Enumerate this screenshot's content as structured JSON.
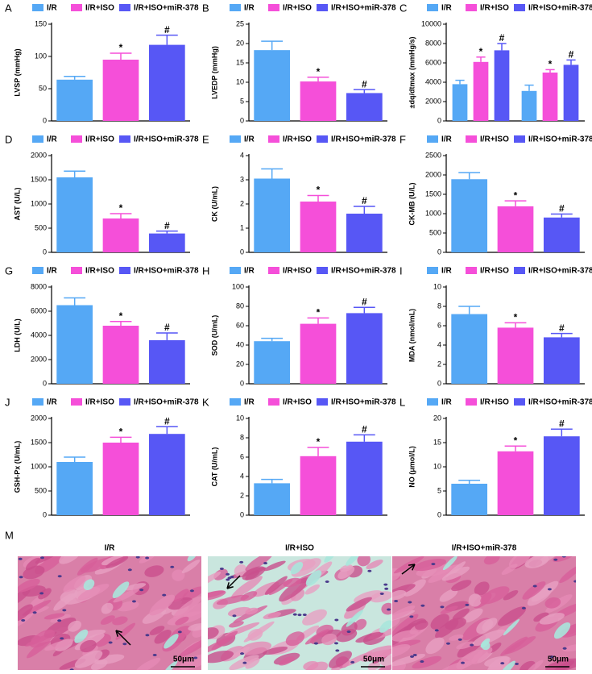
{
  "chart_data": [
    {
      "type": "bar",
      "panel": "A",
      "ylabel": "LVSP (mmHg)",
      "categories": [
        null
      ],
      "ylim": [
        0,
        150
      ],
      "yticks": [
        0,
        50,
        100,
        150
      ],
      "series": [
        {
          "name": "I/R",
          "color": "#55a8f5",
          "values": [
            64
          ],
          "errors": [
            5
          ]
        },
        {
          "name": "I/R+ISO",
          "color": "#f54fd9",
          "values": [
            95
          ],
          "errors": [
            10
          ],
          "annotation": "*"
        },
        {
          "name": "I/R+ISO+miR-378",
          "color": "#5757f5",
          "values": [
            118
          ],
          "errors": [
            15
          ],
          "annotation": "#"
        }
      ]
    },
    {
      "type": "bar",
      "panel": "B",
      "ylabel": "LVEDP (mmHg)",
      "categories": [
        null
      ],
      "ylim": [
        0,
        25
      ],
      "yticks": [
        0,
        5,
        10,
        15,
        20,
        25
      ],
      "series": [
        {
          "name": "I/R",
          "color": "#55a8f5",
          "values": [
            18.3
          ],
          "errors": [
            2.3
          ]
        },
        {
          "name": "I/R+ISO",
          "color": "#f54fd9",
          "values": [
            10.2
          ],
          "errors": [
            1.1
          ],
          "annotation": "*"
        },
        {
          "name": "I/R+ISO+miR-378",
          "color": "#5757f5",
          "values": [
            7.2
          ],
          "errors": [
            0.9
          ],
          "annotation": "#"
        }
      ]
    },
    {
      "type": "bar",
      "panel": "C",
      "ylabel": "±dq/dtmax (mmHg/s)",
      "categories": [
        null,
        null
      ],
      "ylim": [
        0,
        10000
      ],
      "yticks": [
        0,
        2000,
        4000,
        6000,
        8000,
        10000
      ],
      "series": [
        {
          "name": "I/R",
          "color": "#55a8f5",
          "values": [
            3800,
            3100
          ],
          "errors": [
            400,
            600
          ]
        },
        {
          "name": "I/R+ISO",
          "color": "#f54fd9",
          "values": [
            6100,
            5000
          ],
          "errors": [
            500,
            300
          ],
          "annotation": "*"
        },
        {
          "name": "I/R+ISO+miR-378",
          "color": "#5757f5",
          "values": [
            7300,
            5800
          ],
          "errors": [
            700,
            500
          ],
          "annotation": "#"
        }
      ]
    },
    {
      "type": "bar",
      "panel": "D",
      "ylabel": "AST (U/L)",
      "categories": [
        null
      ],
      "ylim": [
        0,
        2000
      ],
      "yticks": [
        0,
        500,
        1000,
        1500,
        2000
      ],
      "series": [
        {
          "name": "I/R",
          "color": "#55a8f5",
          "values": [
            1550
          ],
          "errors": [
            130
          ]
        },
        {
          "name": "I/R+ISO",
          "color": "#f54fd9",
          "values": [
            700
          ],
          "errors": [
            100
          ],
          "annotation": "*"
        },
        {
          "name": "I/R+ISO+miR-378",
          "color": "#5757f5",
          "values": [
            390
          ],
          "errors": [
            50
          ],
          "annotation": "#"
        }
      ]
    },
    {
      "type": "bar",
      "panel": "E",
      "ylabel": "CK (U/mL)",
      "categories": [
        null
      ],
      "ylim": [
        0,
        4
      ],
      "yticks": [
        0,
        1,
        2,
        3,
        4
      ],
      "series": [
        {
          "name": "I/R",
          "color": "#55a8f5",
          "values": [
            3.05
          ],
          "errors": [
            0.4
          ]
        },
        {
          "name": "I/R+ISO",
          "color": "#f54fd9",
          "values": [
            2.1
          ],
          "errors": [
            0.25
          ],
          "annotation": "*"
        },
        {
          "name": "I/R+ISO+miR-378",
          "color": "#5757f5",
          "values": [
            1.6
          ],
          "errors": [
            0.3
          ],
          "annotation": "#"
        }
      ]
    },
    {
      "type": "bar",
      "panel": "F",
      "ylabel": "CK-MB (U/L)",
      "categories": [
        null
      ],
      "ylim": [
        0,
        2500
      ],
      "yticks": [
        0,
        500,
        1000,
        1500,
        2000,
        2500
      ],
      "series": [
        {
          "name": "I/R",
          "color": "#55a8f5",
          "values": [
            1890
          ],
          "errors": [
            170
          ]
        },
        {
          "name": "I/R+ISO",
          "color": "#f54fd9",
          "values": [
            1190
          ],
          "errors": [
            140
          ],
          "annotation": "*"
        },
        {
          "name": "I/R+ISO+miR-378",
          "color": "#5757f5",
          "values": [
            900
          ],
          "errors": [
            90
          ],
          "annotation": "#"
        }
      ]
    },
    {
      "type": "bar",
      "panel": "G",
      "ylabel": "LDH (U/L)",
      "categories": [
        null
      ],
      "ylim": [
        0,
        8000
      ],
      "yticks": [
        0,
        2000,
        4000,
        6000,
        8000
      ],
      "series": [
        {
          "name": "I/R",
          "color": "#55a8f5",
          "values": [
            6500
          ],
          "errors": [
            600
          ]
        },
        {
          "name": "I/R+ISO",
          "color": "#f54fd9",
          "values": [
            4800
          ],
          "errors": [
            350
          ],
          "annotation": "*"
        },
        {
          "name": "I/R+ISO+miR-378",
          "color": "#5757f5",
          "values": [
            3600
          ],
          "errors": [
            600
          ],
          "annotation": "#"
        }
      ]
    },
    {
      "type": "bar",
      "panel": "H",
      "ylabel": "SOD (U/mL)",
      "categories": [
        null
      ],
      "ylim": [
        0,
        100
      ],
      "yticks": [
        0,
        20,
        40,
        60,
        80,
        100
      ],
      "series": [
        {
          "name": "I/R",
          "color": "#55a8f5",
          "values": [
            44
          ],
          "errors": [
            3
          ]
        },
        {
          "name": "I/R+ISO",
          "color": "#f54fd9",
          "values": [
            62
          ],
          "errors": [
            6
          ],
          "annotation": "*"
        },
        {
          "name": "I/R+ISO+miR-378",
          "color": "#5757f5",
          "values": [
            73
          ],
          "errors": [
            6
          ],
          "annotation": "#"
        }
      ]
    },
    {
      "type": "bar",
      "panel": "I",
      "ylabel": "MDA (nmol/mL)",
      "categories": [
        null
      ],
      "ylim": [
        0,
        10
      ],
      "yticks": [
        0,
        2,
        4,
        6,
        8,
        10
      ],
      "series": [
        {
          "name": "I/R",
          "color": "#55a8f5",
          "values": [
            7.2
          ],
          "errors": [
            0.8
          ]
        },
        {
          "name": "I/R+ISO",
          "color": "#f54fd9",
          "values": [
            5.8
          ],
          "errors": [
            0.5
          ],
          "annotation": "*"
        },
        {
          "name": "I/R+ISO+miR-378",
          "color": "#5757f5",
          "values": [
            4.8
          ],
          "errors": [
            0.4
          ],
          "annotation": "#"
        }
      ]
    },
    {
      "type": "bar",
      "panel": "J",
      "ylabel": "GSH-Px (U/mL)",
      "categories": [
        null
      ],
      "ylim": [
        0,
        2000
      ],
      "yticks": [
        0,
        500,
        1000,
        1500,
        2000
      ],
      "series": [
        {
          "name": "I/R",
          "color": "#55a8f5",
          "values": [
            1100
          ],
          "errors": [
            100
          ]
        },
        {
          "name": "I/R+ISO",
          "color": "#f54fd9",
          "values": [
            1500
          ],
          "errors": [
            110
          ],
          "annotation": "*"
        },
        {
          "name": "I/R+ISO+miR-378",
          "color": "#5757f5",
          "values": [
            1680
          ],
          "errors": [
            150
          ],
          "annotation": "#"
        }
      ]
    },
    {
      "type": "bar",
      "panel": "K",
      "ylabel": "CAT (U/mL)",
      "categories": [
        null
      ],
      "ylim": [
        0,
        10
      ],
      "yticks": [
        0,
        2,
        4,
        6,
        8,
        10
      ],
      "series": [
        {
          "name": "I/R",
          "color": "#55a8f5",
          "values": [
            3.3
          ],
          "errors": [
            0.4
          ]
        },
        {
          "name": "I/R+ISO",
          "color": "#f54fd9",
          "values": [
            6.1
          ],
          "errors": [
            0.9
          ],
          "annotation": "*"
        },
        {
          "name": "I/R+ISO+miR-378",
          "color": "#5757f5",
          "values": [
            7.6
          ],
          "errors": [
            0.7
          ],
          "annotation": "#"
        }
      ]
    },
    {
      "type": "bar",
      "panel": "L",
      "ylabel": "NO (μmol/L)",
      "categories": [
        null
      ],
      "ylim": [
        0,
        20
      ],
      "yticks": [
        0,
        5,
        10,
        15,
        20
      ],
      "series": [
        {
          "name": "I/R",
          "color": "#55a8f5",
          "values": [
            6.5
          ],
          "errors": [
            0.7
          ]
        },
        {
          "name": "I/R+ISO",
          "color": "#f54fd9",
          "values": [
            13.2
          ],
          "errors": [
            1.1
          ],
          "annotation": "*"
        },
        {
          "name": "I/R+ISO+miR-378",
          "color": "#5757f5",
          "values": [
            16.3
          ],
          "errors": [
            1.5
          ],
          "annotation": "#"
        }
      ]
    }
  ],
  "histology": {
    "panel": "M",
    "images": [
      {
        "title": "I/R",
        "scale": "50μm"
      },
      {
        "title": "I/R+ISO",
        "scale": "50μm"
      },
      {
        "title": "I/R+ISO+miR-378",
        "scale": "50μm"
      }
    ]
  }
}
